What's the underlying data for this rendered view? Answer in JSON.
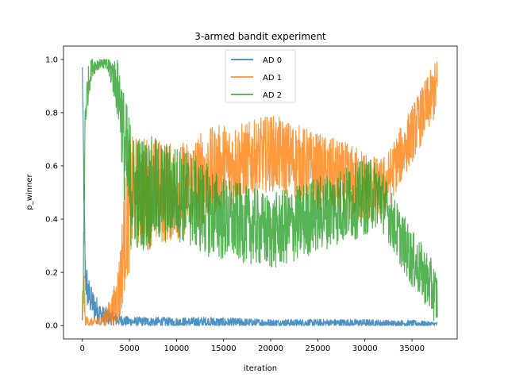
{
  "chart_data": {
    "type": "line",
    "title": "3-armed bandit experiment",
    "xlabel": "iteration",
    "ylabel": "p_winner",
    "xlim": [
      -2000,
      39800
    ],
    "ylim": [
      -0.05,
      1.05
    ],
    "xticks": [
      0,
      5000,
      10000,
      15000,
      20000,
      25000,
      30000,
      35000
    ],
    "xtick_labels": [
      "0",
      "5000",
      "10000",
      "15000",
      "20000",
      "25000",
      "30000",
      "35000"
    ],
    "yticks": [
      0.0,
      0.2,
      0.4,
      0.6,
      0.8,
      1.0
    ],
    "ytick_labels": [
      "0.0",
      "0.2",
      "0.4",
      "0.6",
      "0.8",
      "1.0"
    ],
    "grid": false,
    "legend_position": "top-center",
    "series": [
      {
        "name": "AD 0",
        "color": "#1f77b4",
        "opacity": 0.8,
        "x": [
          0,
          150,
          300,
          600,
          1000,
          1500,
          2000,
          2500,
          3000,
          3500,
          4000,
          5000,
          7000,
          10000,
          13000,
          15000,
          20000,
          25000,
          30000,
          33000,
          35000,
          37700
        ],
        "y": [
          0.97,
          0.55,
          0.2,
          0.12,
          0.09,
          0.06,
          0.04,
          0.035,
          0.03,
          0.025,
          0.02,
          0.015,
          0.015,
          0.012,
          0.012,
          0.012,
          0.01,
          0.01,
          0.01,
          0.008,
          0.008,
          0.005
        ],
        "noise": [
          0.0,
          0.05,
          0.05,
          0.04,
          0.03,
          0.03,
          0.02,
          0.02,
          0.015,
          0.015,
          0.012,
          0.01,
          0.01,
          0.01,
          0.012,
          0.01,
          0.008,
          0.008,
          0.008,
          0.007,
          0.007,
          0.005
        ]
      },
      {
        "name": "AD 1",
        "color": "#ff7f0e",
        "opacity": 0.8,
        "x": [
          0,
          150,
          300,
          1000,
          2000,
          3000,
          3500,
          4000,
          4500,
          5000,
          5500,
          7000,
          10000,
          12500,
          15000,
          17500,
          20000,
          22500,
          25000,
          27500,
          30000,
          31500,
          32500,
          33500,
          35000,
          36500,
          37700
        ],
        "y": [
          0.02,
          0.15,
          0.02,
          0.01,
          0.02,
          0.05,
          0.08,
          0.15,
          0.35,
          0.45,
          0.5,
          0.5,
          0.5,
          0.55,
          0.6,
          0.62,
          0.65,
          0.62,
          0.58,
          0.55,
          0.52,
          0.5,
          0.55,
          0.62,
          0.72,
          0.82,
          0.9
        ],
        "noise": [
          0.0,
          0.06,
          0.01,
          0.01,
          0.01,
          0.03,
          0.05,
          0.08,
          0.12,
          0.14,
          0.12,
          0.12,
          0.1,
          0.1,
          0.09,
          0.08,
          0.08,
          0.08,
          0.08,
          0.08,
          0.08,
          0.07,
          0.06,
          0.06,
          0.06,
          0.06,
          0.06
        ]
      },
      {
        "name": "AD 2",
        "color": "#2ca02c",
        "opacity": 0.8,
        "x": [
          0,
          150,
          300,
          600,
          1000,
          1500,
          2000,
          2500,
          3000,
          3500,
          4000,
          4500,
          5000,
          5500,
          7000,
          10000,
          12500,
          15000,
          17500,
          20000,
          22500,
          25000,
          27500,
          30000,
          31500,
          32500,
          33500,
          35000,
          36500,
          37700
        ],
        "y": [
          0.02,
          0.3,
          0.8,
          0.9,
          0.97,
          0.98,
          0.99,
          0.98,
          0.96,
          0.92,
          0.85,
          0.65,
          0.55,
          0.5,
          0.5,
          0.5,
          0.45,
          0.4,
          0.38,
          0.35,
          0.38,
          0.42,
          0.45,
          0.48,
          0.5,
          0.42,
          0.35,
          0.25,
          0.18,
          0.1
        ],
        "noise": [
          0.0,
          0.1,
          0.05,
          0.04,
          0.02,
          0.015,
          0.01,
          0.015,
          0.03,
          0.05,
          0.08,
          0.12,
          0.14,
          0.12,
          0.12,
          0.1,
          0.1,
          0.09,
          0.08,
          0.08,
          0.08,
          0.08,
          0.08,
          0.08,
          0.07,
          0.06,
          0.06,
          0.06,
          0.06,
          0.06
        ]
      }
    ]
  }
}
